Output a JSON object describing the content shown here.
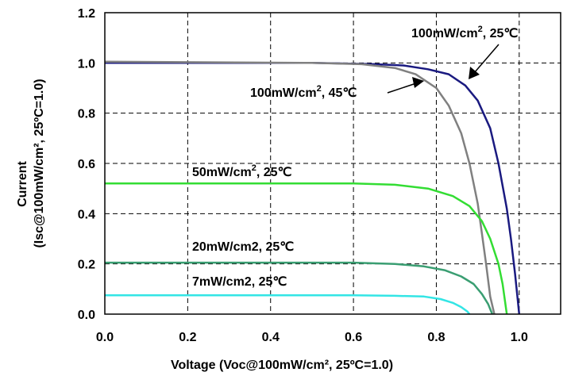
{
  "chart_data": {
    "type": "line",
    "xlabel": "Voltage (Voc@100mW/cm², 25ºC=1.0)",
    "ylabel_line1": "Current",
    "ylabel_line2": "(Isc@100mW/cm², 25ºC=1.0)",
    "xlim": [
      0.0,
      1.1
    ],
    "ylim": [
      0.0,
      1.2
    ],
    "xticks": [
      "0.0",
      "0.2",
      "0.4",
      "0.6",
      "0.8",
      "1.0"
    ],
    "yticks": [
      "0.0",
      "0.2",
      "0.4",
      "0.6",
      "0.8",
      "1.0",
      "1.2"
    ],
    "grid": true,
    "series": [
      {
        "name": "100mW/cm², 25℃",
        "color": "#1a1a80",
        "points": [
          [
            0.0,
            1.0
          ],
          [
            0.5,
            1.0
          ],
          [
            0.65,
            0.995
          ],
          [
            0.72,
            0.99
          ],
          [
            0.78,
            0.975
          ],
          [
            0.83,
            0.955
          ],
          [
            0.87,
            0.91
          ],
          [
            0.9,
            0.85
          ],
          [
            0.93,
            0.74
          ],
          [
            0.95,
            0.6
          ],
          [
            0.97,
            0.42
          ],
          [
            0.98,
            0.3
          ],
          [
            0.99,
            0.16
          ],
          [
            1.0,
            0.0
          ]
        ]
      },
      {
        "name": "100mW/cm², 45℃",
        "color": "#808080",
        "points": [
          [
            0.0,
            1.005
          ],
          [
            0.5,
            1.0
          ],
          [
            0.62,
            0.995
          ],
          [
            0.7,
            0.98
          ],
          [
            0.75,
            0.955
          ],
          [
            0.8,
            0.9
          ],
          [
            0.83,
            0.83
          ],
          [
            0.86,
            0.72
          ],
          [
            0.88,
            0.6
          ],
          [
            0.9,
            0.44
          ],
          [
            0.91,
            0.32
          ],
          [
            0.92,
            0.2
          ],
          [
            0.93,
            0.07
          ],
          [
            0.94,
            0.0
          ]
        ]
      },
      {
        "name": "50mW/cm², 25℃",
        "color": "#33dd33",
        "points": [
          [
            0.0,
            0.52
          ],
          [
            0.6,
            0.52
          ],
          [
            0.7,
            0.515
          ],
          [
            0.78,
            0.5
          ],
          [
            0.84,
            0.47
          ],
          [
            0.88,
            0.43
          ],
          [
            0.91,
            0.37
          ],
          [
            0.93,
            0.3
          ],
          [
            0.95,
            0.2
          ],
          [
            0.96,
            0.12
          ],
          [
            0.97,
            0.0
          ]
        ]
      },
      {
        "name": "20mW/cm2, 25℃",
        "color": "#3a9e72",
        "points": [
          [
            0.0,
            0.205
          ],
          [
            0.6,
            0.205
          ],
          [
            0.7,
            0.2
          ],
          [
            0.77,
            0.19
          ],
          [
            0.82,
            0.175
          ],
          [
            0.86,
            0.15
          ],
          [
            0.89,
            0.12
          ],
          [
            0.91,
            0.08
          ],
          [
            0.925,
            0.04
          ],
          [
            0.935,
            0.0
          ]
        ]
      },
      {
        "name": "7mW/cm2, 25℃",
        "color": "#33e5e5",
        "points": [
          [
            0.0,
            0.075
          ],
          [
            0.6,
            0.075
          ],
          [
            0.7,
            0.073
          ],
          [
            0.77,
            0.07
          ],
          [
            0.81,
            0.06
          ],
          [
            0.84,
            0.045
          ],
          [
            0.86,
            0.028
          ],
          [
            0.875,
            0.01
          ],
          [
            0.88,
            0.0
          ]
        ]
      }
    ],
    "annotations": {
      "ann_100_25": {
        "text": "100mW/cm",
        "sup": "2",
        "tail": ", 25℃"
      },
      "ann_100_45": {
        "text": "100mW/cm",
        "sup": "2",
        "tail": ", 45℃"
      },
      "ann_50_25": {
        "text": "50mW/cm",
        "sup": "2",
        "tail": ", 25℃"
      },
      "ann_20_25": {
        "text": "20mW/cm2, 25℃"
      },
      "ann_7_25": {
        "text": "7mW/cm2, 25℃"
      }
    }
  }
}
